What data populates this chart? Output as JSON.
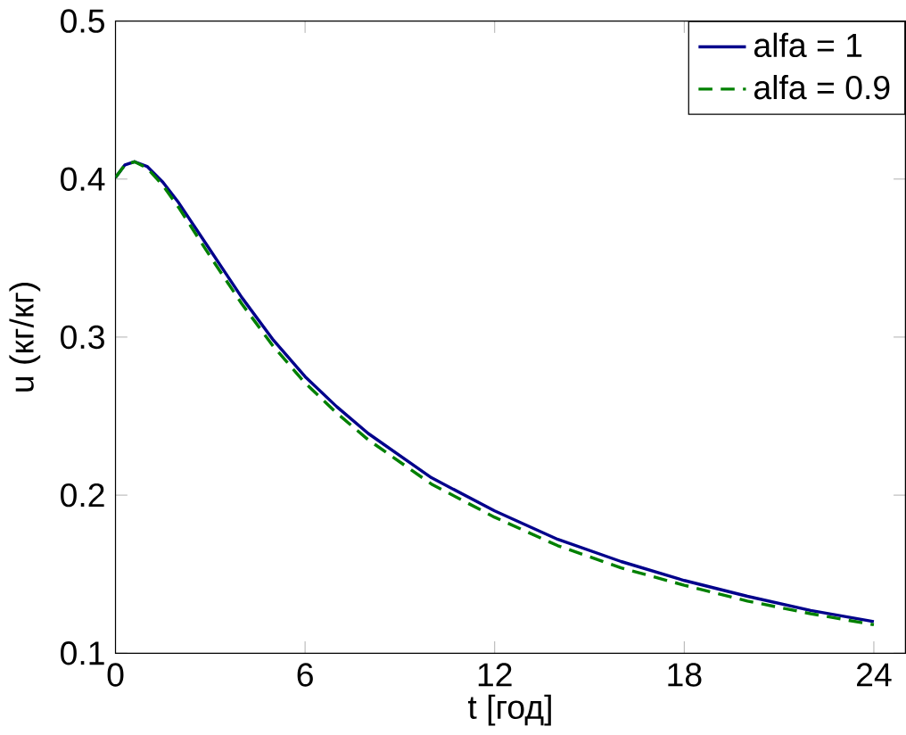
{
  "chart_data": {
    "type": "line",
    "xlabel": "t  [год]",
    "ylabel": "u (кг/кг)",
    "xlim": [
      0,
      25
    ],
    "ylim": [
      0.1,
      0.5
    ],
    "xticks": [
      0,
      6,
      12,
      18,
      24
    ],
    "yticks": [
      0.1,
      0.2,
      0.3,
      0.4,
      0.5
    ],
    "legend": "top right",
    "grid": false,
    "series": [
      {
        "name": "alfa = 1",
        "color": "#00008b",
        "line_style": "solid",
        "x": [
          0,
          0.3,
          0.6,
          1,
          1.5,
          2,
          3,
          4,
          5,
          6,
          7,
          8,
          10,
          12,
          14,
          16,
          18,
          20,
          22,
          24
        ],
        "values": [
          0.401,
          0.409,
          0.411,
          0.408,
          0.398,
          0.385,
          0.355,
          0.325,
          0.298,
          0.275,
          0.256,
          0.239,
          0.211,
          0.19,
          0.172,
          0.158,
          0.146,
          0.136,
          0.127,
          0.12
        ]
      },
      {
        "name": "alfa = 0.9",
        "color": "#008000",
        "line_style": "dashed",
        "x": [
          0,
          0.3,
          0.6,
          1,
          1.5,
          2,
          3,
          4,
          5,
          6,
          7,
          8,
          10,
          12,
          14,
          16,
          18,
          20,
          22,
          24
        ],
        "values": [
          0.401,
          0.409,
          0.411,
          0.407,
          0.396,
          0.382,
          0.351,
          0.321,
          0.294,
          0.271,
          0.252,
          0.235,
          0.207,
          0.186,
          0.168,
          0.154,
          0.143,
          0.133,
          0.125,
          0.118
        ]
      }
    ]
  }
}
